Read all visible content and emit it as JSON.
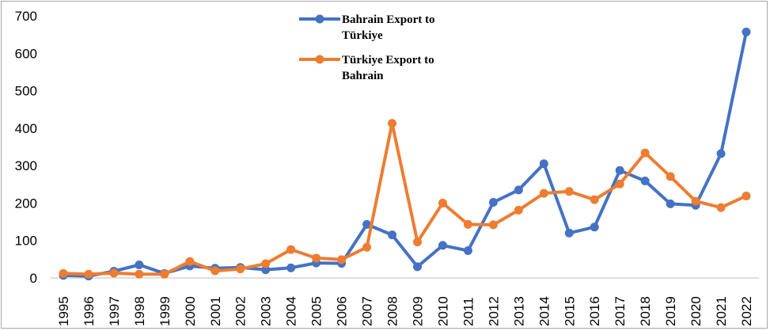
{
  "chart_data": {
    "type": "line",
    "title": "",
    "xlabel": "",
    "ylabel": "",
    "ylim": [
      0,
      700
    ],
    "yticks": [
      0,
      100,
      200,
      300,
      400,
      500,
      600,
      700
    ],
    "grid": false,
    "legend_position": "top-center",
    "categories": [
      "1995",
      "1996",
      "1997",
      "1998",
      "1999",
      "2000",
      "2001",
      "2002",
      "2003",
      "2004",
      "2005",
      "2006",
      "2007",
      "2008",
      "2009",
      "2010",
      "2011",
      "2012",
      "2013",
      "2014",
      "2015",
      "2016",
      "2017",
      "2018",
      "2019",
      "2020",
      "2021",
      "2022"
    ],
    "series": [
      {
        "name_lines": [
          "Bahrain Export to",
          "Türkiye"
        ],
        "color": "#4472c4",
        "values": [
          7,
          5,
          18,
          35,
          12,
          32,
          26,
          28,
          22,
          27,
          40,
          39,
          143,
          115,
          30,
          87,
          73,
          202,
          235,
          305,
          120,
          136,
          287,
          259,
          198,
          194,
          332,
          657
        ]
      },
      {
        "name_lines": [
          "Türkiye Export to",
          "Bahrain"
        ],
        "color": "#ed7d31",
        "values": [
          12,
          10,
          13,
          10,
          10,
          44,
          19,
          24,
          38,
          76,
          53,
          49,
          82,
          413,
          96,
          200,
          143,
          142,
          181,
          226,
          231,
          209,
          251,
          334,
          271,
          205,
          188,
          219
        ]
      }
    ]
  }
}
